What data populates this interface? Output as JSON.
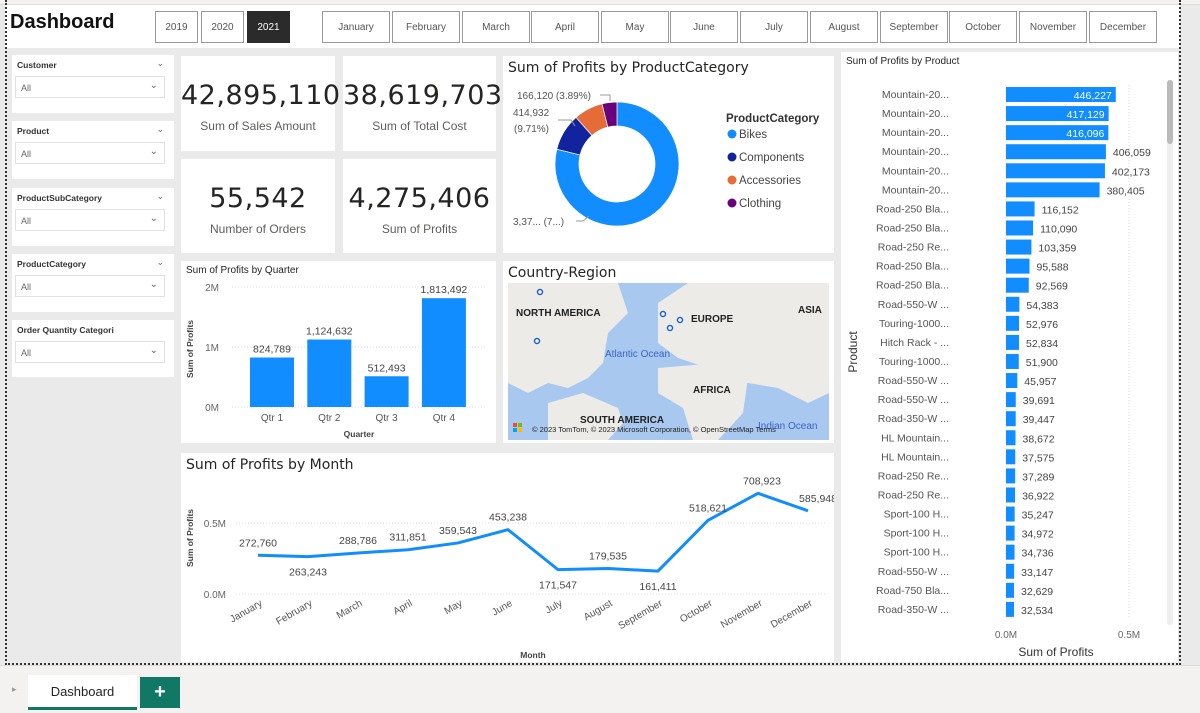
{
  "header": {
    "title": "Dashboard"
  },
  "years": [
    {
      "label": "2019",
      "selected": false
    },
    {
      "label": "2020",
      "selected": false
    },
    {
      "label": "2021",
      "selected": true
    }
  ],
  "months": [
    "January",
    "February",
    "March",
    "April",
    "May",
    "June",
    "July",
    "August",
    "September",
    "October",
    "November",
    "December"
  ],
  "slicers": [
    {
      "label": "Customer",
      "value": "All"
    },
    {
      "label": "Product",
      "value": "All"
    },
    {
      "label": "ProductSubCategory",
      "value": "All"
    },
    {
      "label": "ProductCategory",
      "value": "All"
    },
    {
      "label": "Order Quantity Categori",
      "value": "All"
    }
  ],
  "kpis": [
    {
      "value": "42,895,110",
      "caption": "Sum of Sales Amount"
    },
    {
      "value": "38,619,703",
      "caption": "Sum of Total Cost"
    },
    {
      "value": "55,542",
      "caption": "Number of Orders"
    },
    {
      "value": "4,275,406",
      "caption": "Sum of Profits"
    }
  ],
  "map": {
    "title": "Country-Region",
    "labels": [
      "NORTH AMERICA",
      "EUROPE",
      "ASIA",
      "AFRICA",
      "SOUTH AMERICA",
      "Atlantic Ocean",
      "Indian Ocean"
    ],
    "attribution": "© 2023 TomTom, © 2023 Microsoft Corporation, © OpenStreetMap  Terms"
  },
  "tabs": {
    "active": "Dashboard",
    "add": "+"
  },
  "colors": {
    "bar": "#118DFF",
    "bikes": "#118DFF",
    "components": "#12239E",
    "accessories": "#E66C37",
    "clothing": "#6B007B",
    "tab": "#117865"
  },
  "chart_data": [
    {
      "type": "pie",
      "title": "Sum of Profits by ProductCategory",
      "legend_title": "ProductCategory",
      "legend_position": "right",
      "categories": [
        "Bikes",
        "Components",
        "Accessories",
        "Clothing"
      ],
      "values": [
        3370000,
        414932,
        324354,
        166120
      ],
      "data_labels": [
        "3,37... (7...)",
        "414,932 (9.71%)",
        "",
        "166,120 (3.89%)"
      ]
    },
    {
      "type": "bar",
      "title": "Sum of Profits by Quarter",
      "xlabel": "Quarter",
      "ylabel": "Sum of Profits",
      "categories": [
        "Qtr 1",
        "Qtr 2",
        "Qtr 3",
        "Qtr 4"
      ],
      "values": [
        824789,
        1124632,
        512493,
        1813492
      ],
      "value_labels": [
        "824,789",
        "1,124,632",
        "512,493",
        "1,813,492"
      ],
      "ylim": [
        0,
        2000000
      ],
      "yticks": [
        {
          "v": 0,
          "t": "0M"
        },
        {
          "v": 1000000,
          "t": "1M"
        },
        {
          "v": 2000000,
          "t": "2M"
        }
      ]
    },
    {
      "type": "line",
      "title": "Sum of Profits by Month",
      "xlabel": "Month",
      "ylabel": "Sum of Profits",
      "categories": [
        "January",
        "February",
        "March",
        "April",
        "May",
        "June",
        "July",
        "August",
        "September",
        "October",
        "November",
        "December"
      ],
      "values": [
        272760,
        263243,
        288786,
        311851,
        359543,
        453238,
        171547,
        179535,
        161411,
        518621,
        708923,
        585948
      ],
      "value_labels": [
        "272,760",
        "263,243",
        "288,786",
        "311,851",
        "359,543",
        "453,238",
        "171,547",
        "179,535",
        "161,411",
        "518,621",
        "708,923",
        "585,948"
      ],
      "yticks": [
        {
          "v": 0,
          "t": "0.0M"
        },
        {
          "v": 500000,
          "t": "0.5M"
        }
      ]
    },
    {
      "type": "bar",
      "orientation": "horizontal",
      "title": "Sum of Profits by Product",
      "xlabel": "Sum of Profits",
      "ylabel": "Product",
      "xticks": [
        {
          "v": 0,
          "t": "0.0M"
        },
        {
          "v": 500000,
          "t": "0.5M"
        }
      ],
      "categories": [
        "Mountain-20...",
        "Mountain-20...",
        "Mountain-20...",
        "Mountain-20...",
        "Mountain-20...",
        "Mountain-20...",
        "Road-250 Bla...",
        "Road-250 Bla...",
        "Road-250 Re...",
        "Road-250 Bla...",
        "Road-250 Bla...",
        "Road-550-W ...",
        "Touring-1000...",
        "Hitch Rack - ...",
        "Touring-1000...",
        "Road-550-W ...",
        "Road-550-W ...",
        "Road-350-W ...",
        "HL Mountain...",
        "HL Mountain...",
        "Road-250 Re...",
        "Road-250 Re...",
        "Sport-100 H...",
        "Sport-100 H...",
        "Sport-100 H...",
        "Road-550-W ...",
        "Road-750 Bla...",
        "Road-350-W ..."
      ],
      "values": [
        446227,
        417129,
        416096,
        406059,
        402173,
        380405,
        116152,
        110090,
        103359,
        95588,
        92569,
        54383,
        52976,
        52834,
        51900,
        45957,
        39691,
        39447,
        38672,
        37575,
        37289,
        36922,
        35247,
        34972,
        34736,
        33147,
        32629,
        32534
      ],
      "value_labels": [
        "446,227",
        "417,129",
        "416,096",
        "406,059",
        "402,173",
        "380,405",
        "116,152",
        "110,090",
        "103,359",
        "95,588",
        "92,569",
        "54,383",
        "52,976",
        "52,834",
        "51,900",
        "45,957",
        "39,691",
        "39,447",
        "38,672",
        "37,575",
        "37,289",
        "36,922",
        "35,247",
        "34,972",
        "34,736",
        "33,147",
        "32,629",
        "32,534"
      ]
    }
  ]
}
